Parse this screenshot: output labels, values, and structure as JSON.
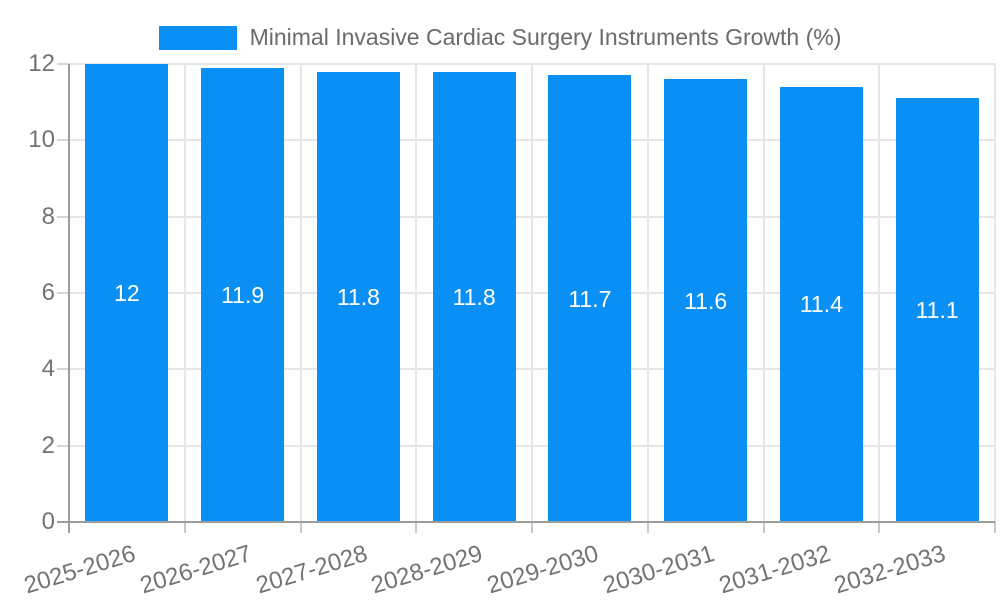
{
  "legend": {
    "label": "Minimal Invasive Cardiac Surgery Instruments Growth (%)",
    "swatch_color": "#0a90f5"
  },
  "colors": {
    "bar": "#0a90f5",
    "grid": "#e6e6e6",
    "axis": "#9c9c9c",
    "tick_text": "#737373",
    "data_label": "#ffffff",
    "legend_text": "#6b6b6b",
    "background": "#ffffff"
  },
  "chart_data": {
    "type": "bar",
    "title": "Minimal Invasive Cardiac Surgery Instruments Growth (%)",
    "categories": [
      "2025-2026",
      "2026-2027",
      "2027-2028",
      "2028-2029",
      "2029-2030",
      "2030-2031",
      "2031-2032",
      "2032-2033"
    ],
    "values": [
      12,
      11.9,
      11.8,
      11.8,
      11.7,
      11.6,
      11.4,
      11.1
    ],
    "value_labels": [
      "12",
      "11.9",
      "11.8",
      "11.8",
      "11.7",
      "11.6",
      "11.4",
      "11.1"
    ],
    "xlabel": "",
    "ylabel": "",
    "ylim": [
      0,
      12
    ],
    "yticks": [
      0,
      2,
      4,
      6,
      8,
      10,
      12
    ],
    "ytick_labels": [
      "0",
      "2",
      "4",
      "6",
      "8",
      "10",
      "12"
    ],
    "grid": true,
    "legend_position": "top",
    "data_labels_position": "inside-middle"
  }
}
